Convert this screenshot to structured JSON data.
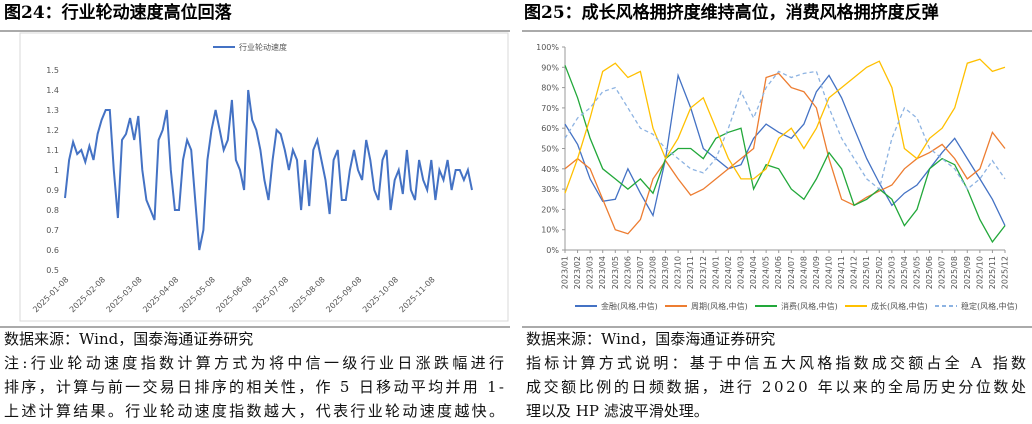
{
  "chart_data": [
    {
      "type": "line",
      "title": "图24：行业轮动速度高位回落",
      "categories": [
        null,
        "2025-01-08",
        null,
        null,
        null,
        null,
        null,
        null,
        null,
        null,
        "2025-02-08",
        null,
        null,
        null,
        null,
        null,
        null,
        null,
        null,
        "2025-03-08",
        null,
        null,
        null,
        null,
        null,
        null,
        null,
        null,
        "2025-04-08",
        null,
        null,
        null,
        null,
        null,
        null,
        null,
        null,
        "2025-05-08",
        null,
        null,
        null,
        null,
        null,
        null,
        null,
        null,
        "2025-06-08",
        null,
        null,
        null,
        null,
        null,
        null,
        null,
        null,
        "2025-07-08",
        null,
        null,
        null,
        null,
        null,
        null,
        null,
        null,
        "2025-08-08",
        null,
        null,
        null,
        null,
        null,
        null,
        null,
        null,
        "2025-09-08",
        null,
        null,
        null,
        null,
        null,
        null,
        null,
        null,
        "2025-10-08",
        null,
        null,
        null,
        null,
        null,
        null,
        null,
        null,
        "2025-11-08",
        null,
        null,
        null,
        null,
        null,
        null,
        null,
        null,
        null
      ],
      "series": [
        {
          "name": "行业轮动速度",
          "color": "#4472c4",
          "values": [
            0.86,
            1.05,
            1.14,
            1.08,
            1.1,
            1.04,
            1.12,
            1.05,
            1.18,
            1.25,
            1.3,
            1.3,
            1.0,
            0.76,
            1.15,
            1.18,
            1.26,
            1.15,
            1.27,
            1.0,
            0.85,
            0.8,
            0.75,
            1.15,
            1.2,
            1.3,
            1.0,
            0.8,
            0.8,
            1.05,
            1.15,
            1.1,
            0.85,
            0.6,
            0.7,
            1.05,
            1.2,
            1.3,
            1.2,
            1.1,
            1.15,
            1.35,
            1.05,
            1.0,
            0.9,
            1.4,
            1.25,
            1.2,
            1.1,
            0.95,
            0.85,
            1.05,
            1.2,
            1.18,
            1.1,
            1.0,
            1.1,
            1.05,
            0.8,
            1.05,
            0.82,
            1.1,
            1.15,
            1.05,
            0.95,
            0.78,
            1.05,
            1.1,
            0.85,
            0.85,
            1.0,
            1.1,
            1.0,
            0.95,
            1.15,
            1.05,
            0.9,
            0.85,
            1.05,
            1.1,
            0.8,
            0.95,
            1.0,
            0.88,
            1.1,
            0.9,
            0.85,
            1.05,
            0.95,
            0.9,
            1.05,
            0.85,
            1.0,
            0.95,
            1.05,
            0.9,
            1.0,
            1.0,
            0.95,
            1.0,
            0.9
          ]
        }
      ],
      "ylim": [
        0.5,
        1.5
      ],
      "yticks": [
        0.5,
        0.6,
        0.7,
        0.8,
        0.9,
        1,
        1.1,
        1.2,
        1.3,
        1.4,
        1.5
      ],
      "legend": "top",
      "grid": false
    },
    {
      "type": "line",
      "title": "图25：成长风格拥挤度维持高位，消费风格拥挤度反弹",
      "categories": [
        "2023/01",
        "2023/02",
        "2023/03",
        "2023/04",
        "2023/05",
        "2023/06",
        "2023/07",
        "2023/08",
        "2023/09",
        "2023/10",
        "2023/11",
        "2023/12",
        "2024/01",
        "2024/02",
        "2024/03",
        "2024/04",
        "2024/05",
        "2024/06",
        "2024/07",
        "2024/08",
        "2024/09",
        "2024/10",
        "2024/11",
        "2024/12",
        "2025/01",
        "2025/02",
        "2025/03",
        "2025/04",
        "2025/05",
        "2025/06",
        "2025/07",
        "2025/08",
        "2025/09",
        "2025/10",
        "2025/11",
        "2025/12"
      ],
      "series": [
        {
          "name": "金融(风格,中信)",
          "color": "#4472c4",
          "values": [
            62,
            52,
            35,
            24,
            25,
            40,
            28,
            17,
            45,
            86,
            70,
            50,
            45,
            40,
            42,
            55,
            62,
            58,
            55,
            62,
            78,
            86,
            75,
            60,
            45,
            33,
            22,
            28,
            32,
            40,
            48,
            55,
            45,
            35,
            25,
            12
          ]
        },
        {
          "name": "周期(风格,中信)",
          "color": "#ed7d31",
          "values": [
            40,
            45,
            40,
            25,
            10,
            8,
            15,
            35,
            44,
            35,
            27,
            30,
            35,
            40,
            45,
            50,
            85,
            87,
            80,
            78,
            70,
            45,
            25,
            22,
            26,
            29,
            32,
            40,
            45,
            48,
            52,
            45,
            35,
            40,
            58,
            50
          ]
        },
        {
          "name": "消费(风格,中信)",
          "color": "#22a83a",
          "values": [
            91,
            75,
            55,
            40,
            35,
            30,
            35,
            28,
            45,
            50,
            50,
            45,
            55,
            58,
            60,
            30,
            42,
            40,
            30,
            25,
            35,
            48,
            40,
            22,
            25,
            30,
            25,
            12,
            20,
            40,
            45,
            42,
            30,
            15,
            4,
            12
          ]
        },
        {
          "name": "成长(风格,中信)",
          "color": "#ffc000",
          "values": [
            28,
            45,
            65,
            88,
            92,
            85,
            88,
            60,
            45,
            55,
            70,
            75,
            60,
            45,
            35,
            35,
            40,
            55,
            60,
            50,
            60,
            75,
            80,
            85,
            90,
            93,
            80,
            50,
            45,
            55,
            60,
            70,
            92,
            94,
            88,
            90
          ]
        },
        {
          "name": "稳定(风格,中信)",
          "color": "#8db3e2",
          "dashed": true,
          "values": [
            55,
            65,
            70,
            78,
            80,
            70,
            60,
            57,
            50,
            45,
            40,
            38,
            45,
            60,
            78,
            65,
            80,
            88,
            85,
            87,
            88,
            70,
            55,
            45,
            35,
            30,
            55,
            70,
            65,
            50,
            45,
            40,
            30,
            35,
            44,
            35
          ]
        }
      ],
      "ylim": [
        0,
        100
      ],
      "yticks": [
        {
          "value": 0,
          "label": "0%"
        },
        {
          "value": 10,
          "label": "10%"
        },
        {
          "value": 20,
          "label": "20%"
        },
        {
          "value": 30,
          "label": "30%"
        },
        {
          "value": 40,
          "label": "40%"
        },
        {
          "value": 50,
          "label": "50%"
        },
        {
          "value": 60,
          "label": "60%"
        },
        {
          "value": 70,
          "label": "70%"
        },
        {
          "value": 80,
          "label": "80%"
        },
        {
          "value": 90,
          "label": "90%"
        },
        {
          "value": 100,
          "label": "100%"
        }
      ],
      "legend": "bottom",
      "grid": false
    }
  ],
  "captions": [
    {
      "source": "数据来源：Wind，国泰海通证券研究",
      "notes": [
        "注:行业轮动速度指数计算方式为将中信一级行业日涨跌幅进行",
        "排序，计算与前一交易日排序的相关性，作 5 日移动平均并用 1-",
        "上述计算结果。行业轮动速度指数越大，代表行业轮动速度越快。"
      ]
    },
    {
      "source": "数据来源：Wind，国泰海通证券研究",
      "notes": [
        "指标计算方式说明：基于中信五大风格指数成交额占全 A 指数",
        "成交额比例的日频数据，进行 2020 年以来的全局历史分位数处",
        "理以及 HP 滤波平滑处理。"
      ]
    }
  ]
}
